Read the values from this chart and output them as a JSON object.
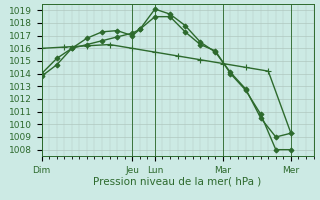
{
  "background_color": "#cceae4",
  "grid_color": "#b0c8c0",
  "line_color": "#2d6a2d",
  "marker_color": "#2d6a2d",
  "xlabel": "Pression niveau de la mer( hPa )",
  "ylim": [
    1007.5,
    1019.5
  ],
  "yticks": [
    1008,
    1009,
    1010,
    1011,
    1012,
    1013,
    1014,
    1015,
    1016,
    1017,
    1018,
    1019
  ],
  "day_labels": [
    "Dim",
    "Jeu",
    "Lun",
    "Mar",
    "Mer"
  ],
  "day_positions": [
    0,
    12,
    15,
    24,
    33
  ],
  "xlim": [
    0,
    36
  ],
  "series": [
    {
      "x": [
        0,
        2,
        4,
        6,
        8,
        10,
        12,
        13,
        15,
        17,
        19,
        21,
        23,
        25,
        27,
        29,
        31,
        33
      ],
      "y": [
        1013.8,
        1014.7,
        1016.0,
        1016.3,
        1016.6,
        1016.9,
        1017.2,
        1017.5,
        1019.1,
        1018.7,
        1017.8,
        1016.5,
        1015.7,
        1014.1,
        1012.8,
        1010.5,
        1009.0,
        1009.3
      ],
      "marker": "D",
      "ms": 2.5
    },
    {
      "x": [
        0,
        2,
        4,
        6,
        8,
        10,
        12,
        13,
        15,
        17,
        19,
        21,
        23,
        25,
        27,
        29,
        31,
        33
      ],
      "y": [
        1014.0,
        1015.2,
        1016.0,
        1016.8,
        1017.3,
        1017.4,
        1017.0,
        1017.5,
        1018.5,
        1018.5,
        1017.3,
        1016.3,
        1015.8,
        1014.0,
        1012.7,
        1010.8,
        1008.0,
        1008.0
      ],
      "marker": "D",
      "ms": 2.5
    },
    {
      "x": [
        0,
        3,
        6,
        9,
        12,
        15,
        18,
        21,
        24,
        27,
        30,
        33
      ],
      "y": [
        1016.0,
        1016.1,
        1016.2,
        1016.3,
        1016.0,
        1015.7,
        1015.4,
        1015.1,
        1014.8,
        1014.5,
        1014.2,
        1009.3
      ],
      "marker": "+",
      "ms": 4
    }
  ],
  "linewidth": 1.0,
  "xlabel_fontsize": 7.5,
  "tick_fontsize": 6.5
}
